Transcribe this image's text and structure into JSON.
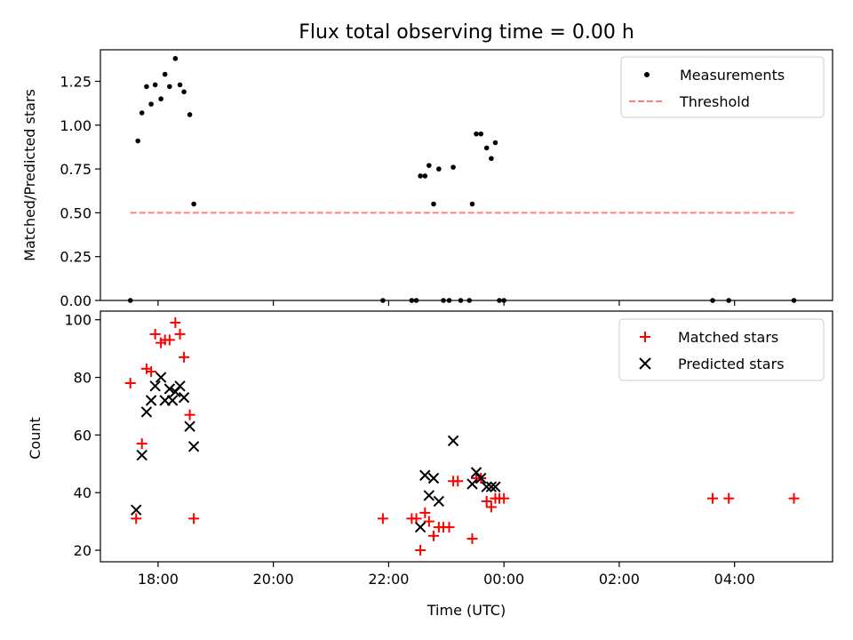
{
  "title": "Flux total observing time = 0.00 h",
  "xlabel": "Time (UTC)",
  "x_ticks": [
    "18:00",
    "20:00",
    "22:00",
    "00:00",
    "02:00",
    "04:00"
  ],
  "colors": {
    "measurements": "#000000",
    "threshold": "#ff7f7f",
    "matched": "#ff0000",
    "predicted": "#000000"
  },
  "chart_data": [
    {
      "type": "scatter",
      "ylabel": "Matched/Predicted stars",
      "xlim": [
        17.0,
        29.7
      ],
      "ylim": [
        0,
        1.43
      ],
      "y_ticks": [
        "0.00",
        "0.25",
        "0.50",
        "0.75",
        "1.00",
        "1.25"
      ],
      "y_tick_values": [
        0,
        0.25,
        0.5,
        0.75,
        1.0,
        1.25
      ],
      "grid": false,
      "legend": "top-right",
      "series": [
        {
          "name": "Measurements",
          "marker": "dot",
          "points": [
            [
              17.52,
              0.0
            ],
            [
              17.65,
              0.91
            ],
            [
              17.72,
              1.07
            ],
            [
              17.8,
              1.22
            ],
            [
              17.88,
              1.12
            ],
            [
              17.95,
              1.23
            ],
            [
              18.05,
              1.15
            ],
            [
              18.12,
              1.29
            ],
            [
              18.2,
              1.22
            ],
            [
              18.3,
              1.38
            ],
            [
              18.38,
              1.23
            ],
            [
              18.45,
              1.19
            ],
            [
              18.55,
              1.06
            ],
            [
              18.62,
              0.55
            ],
            [
              21.9,
              0.0
            ],
            [
              22.4,
              0.0
            ],
            [
              22.48,
              0.0
            ],
            [
              22.55,
              0.71
            ],
            [
              22.63,
              0.71
            ],
            [
              22.7,
              0.77
            ],
            [
              22.78,
              0.55
            ],
            [
              22.87,
              0.75
            ],
            [
              22.95,
              0.0
            ],
            [
              23.05,
              0.0
            ],
            [
              23.12,
              0.76
            ],
            [
              23.25,
              0.0
            ],
            [
              23.4,
              0.0
            ],
            [
              23.45,
              0.55
            ],
            [
              23.52,
              0.95
            ],
            [
              23.6,
              0.95
            ],
            [
              23.7,
              0.87
            ],
            [
              23.78,
              0.81
            ],
            [
              23.85,
              0.9
            ],
            [
              23.92,
              0.0
            ],
            [
              24.0,
              0.0
            ],
            [
              27.62,
              0.0
            ],
            [
              27.9,
              0.0
            ],
            [
              29.03,
              0.0
            ]
          ]
        },
        {
          "name": "Threshold",
          "style": "dashed",
          "points": [
            [
              17.52,
              0.5
            ],
            [
              29.03,
              0.5
            ]
          ]
        }
      ]
    },
    {
      "type": "scatter",
      "ylabel": "Count",
      "xlim": [
        17.0,
        29.7
      ],
      "ylim": [
        16,
        103
      ],
      "y_ticks": [
        "20",
        "40",
        "60",
        "80",
        "100"
      ],
      "y_tick_values": [
        20,
        40,
        60,
        80,
        100
      ],
      "grid": false,
      "legend": "top-right",
      "series": [
        {
          "name": "Matched stars",
          "marker": "plus",
          "points": [
            [
              17.52,
              78
            ],
            [
              17.62,
              31
            ],
            [
              17.72,
              57
            ],
            [
              17.8,
              83
            ],
            [
              17.88,
              82
            ],
            [
              17.95,
              95
            ],
            [
              18.05,
              92
            ],
            [
              18.12,
              93
            ],
            [
              18.2,
              93
            ],
            [
              18.3,
              99
            ],
            [
              18.38,
              95
            ],
            [
              18.45,
              87
            ],
            [
              18.55,
              67
            ],
            [
              18.62,
              31
            ],
            [
              21.9,
              31
            ],
            [
              22.4,
              31
            ],
            [
              22.48,
              31
            ],
            [
              22.55,
              20
            ],
            [
              22.63,
              33
            ],
            [
              22.7,
              30
            ],
            [
              22.78,
              25
            ],
            [
              22.87,
              28
            ],
            [
              22.95,
              28
            ],
            [
              23.05,
              28
            ],
            [
              23.12,
              44
            ],
            [
              23.2,
              44
            ],
            [
              23.45,
              24
            ],
            [
              23.52,
              45
            ],
            [
              23.6,
              45
            ],
            [
              23.7,
              37
            ],
            [
              23.78,
              35
            ],
            [
              23.85,
              38
            ],
            [
              23.92,
              38
            ],
            [
              24.0,
              38
            ],
            [
              27.62,
              38
            ],
            [
              27.9,
              38
            ],
            [
              29.03,
              38
            ]
          ]
        },
        {
          "name": "Predicted stars",
          "marker": "x",
          "points": [
            [
              17.62,
              34
            ],
            [
              17.72,
              53
            ],
            [
              17.8,
              68
            ],
            [
              17.88,
              72
            ],
            [
              17.95,
              77
            ],
            [
              18.05,
              80
            ],
            [
              18.12,
              72
            ],
            [
              18.2,
              76
            ],
            [
              18.25,
              72
            ],
            [
              18.3,
              75
            ],
            [
              18.38,
              77
            ],
            [
              18.45,
              73
            ],
            [
              18.55,
              63
            ],
            [
              18.62,
              56
            ],
            [
              22.55,
              28
            ],
            [
              22.63,
              46
            ],
            [
              22.7,
              39
            ],
            [
              22.78,
              45
            ],
            [
              22.87,
              37
            ],
            [
              23.12,
              58
            ],
            [
              23.45,
              43
            ],
            [
              23.52,
              47
            ],
            [
              23.6,
              45
            ],
            [
              23.7,
              42
            ],
            [
              23.78,
              42
            ],
            [
              23.85,
              42
            ]
          ]
        }
      ]
    }
  ]
}
